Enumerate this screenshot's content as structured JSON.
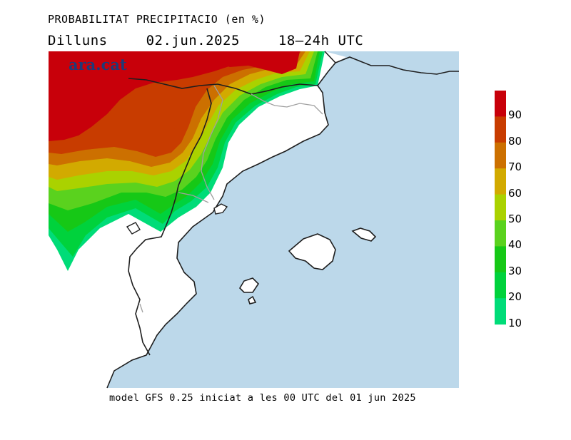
{
  "header": {
    "title": "PROBABILITAT PRECIPITACIO (en %)",
    "day": "Dilluns",
    "date": "02.jun.2025",
    "period": "18–24h UTC"
  },
  "footer": {
    "model_info": "model GFS 0.25 iniciat a les 00 UTC del 01 jun 2025"
  },
  "logo": {
    "text": "ara.cat"
  },
  "legend": {
    "labels": [
      "90",
      "80",
      "70",
      "60",
      "50",
      "40",
      "30",
      "20",
      "10"
    ],
    "colors": [
      "#c8000a",
      "#c83c00",
      "#cc7000",
      "#d2aa00",
      "#aad200",
      "#5ad21e",
      "#16c816",
      "#00d23c",
      "#00dc78"
    ]
  },
  "colors": {
    "sea": "#bcd8ea",
    "land": "#ffffff",
    "coast": "#1e1e1e",
    "border": "#a0a0a0"
  }
}
